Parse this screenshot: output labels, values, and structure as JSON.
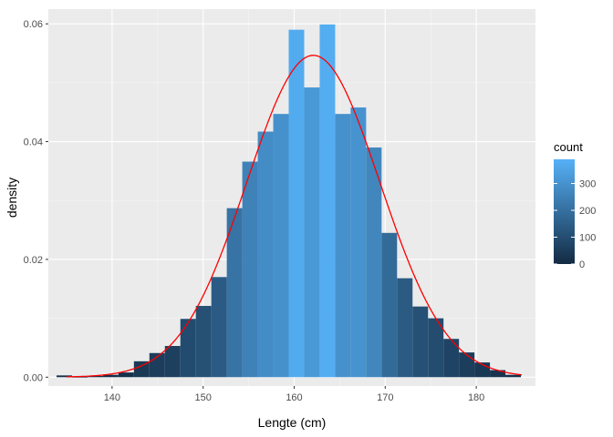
{
  "chart_data": {
    "type": "bar",
    "subtype": "histogram-with-density-curve",
    "xlabel": "Lengte (cm)",
    "ylabel": "density",
    "xlim": [
      133,
      186.5
    ],
    "ylim": [
      -0.0015,
      0.0625
    ],
    "xticks": [
      140,
      150,
      160,
      170,
      180
    ],
    "yticks": [
      0.0,
      0.02,
      0.04,
      0.06
    ],
    "ytick_labels": [
      "0.00",
      "0.02",
      "0.04",
      "0.06"
    ],
    "grid": true,
    "bin_width": 1.7,
    "bins": [
      {
        "xmin": 133.9,
        "xmax": 135.6,
        "density": 0.0003
      },
      {
        "xmin": 135.6,
        "xmax": 137.3,
        "density": 0.0001
      },
      {
        "xmin": 137.3,
        "xmax": 139.0,
        "density": 0.0002
      },
      {
        "xmin": 139.0,
        "xmax": 140.7,
        "density": 0.0004
      },
      {
        "xmin": 140.7,
        "xmax": 142.4,
        "density": 0.0008
      },
      {
        "xmin": 142.4,
        "xmax": 144.1,
        "density": 0.0027
      },
      {
        "xmin": 144.1,
        "xmax": 145.8,
        "density": 0.0041
      },
      {
        "xmin": 145.8,
        "xmax": 147.5,
        "density": 0.0053
      },
      {
        "xmin": 147.5,
        "xmax": 149.2,
        "density": 0.0099
      },
      {
        "xmin": 149.2,
        "xmax": 150.9,
        "density": 0.0121
      },
      {
        "xmin": 150.9,
        "xmax": 152.6,
        "density": 0.017
      },
      {
        "xmin": 152.6,
        "xmax": 154.3,
        "density": 0.0287
      },
      {
        "xmin": 154.3,
        "xmax": 156.0,
        "density": 0.0366
      },
      {
        "xmin": 156.0,
        "xmax": 157.7,
        "density": 0.0417
      },
      {
        "xmin": 157.7,
        "xmax": 159.4,
        "density": 0.0447
      },
      {
        "xmin": 159.4,
        "xmax": 161.1,
        "density": 0.059
      },
      {
        "xmin": 161.1,
        "xmax": 162.8,
        "density": 0.0492
      },
      {
        "xmin": 162.8,
        "xmax": 164.5,
        "density": 0.0599
      },
      {
        "xmin": 164.5,
        "xmax": 166.2,
        "density": 0.0447
      },
      {
        "xmin": 166.2,
        "xmax": 167.9,
        "density": 0.0458
      },
      {
        "xmin": 167.9,
        "xmax": 169.6,
        "density": 0.039
      },
      {
        "xmin": 169.6,
        "xmax": 171.3,
        "density": 0.0245
      },
      {
        "xmin": 171.3,
        "xmax": 173.0,
        "density": 0.0168
      },
      {
        "xmin": 173.0,
        "xmax": 174.7,
        "density": 0.012
      },
      {
        "xmin": 174.7,
        "xmax": 176.4,
        "density": 0.01
      },
      {
        "xmin": 176.4,
        "xmax": 178.1,
        "density": 0.0065
      },
      {
        "xmin": 178.1,
        "xmax": 179.8,
        "density": 0.0042
      },
      {
        "xmin": 179.8,
        "xmax": 181.5,
        "density": 0.0025
      },
      {
        "xmin": 181.5,
        "xmax": 183.2,
        "density": 0.0012
      },
      {
        "xmin": 183.2,
        "xmax": 184.9,
        "density": 0.0004
      }
    ],
    "curve": {
      "kind": "normal-density",
      "mean": 162.1,
      "sd": 7.3,
      "x_range": [
        135,
        185
      ],
      "color": "#ff0000"
    },
    "fill_mapping": {
      "variable": "count",
      "counts_per_density": 6250,
      "scale_max": 390,
      "low_color": "#132b43",
      "high_color": "#56b1f7"
    },
    "legend": {
      "title": "count",
      "position": "right",
      "breaks": [
        0,
        100,
        200,
        300
      ],
      "labels": [
        "0",
        "100",
        "200",
        "300"
      ],
      "range": [
        0,
        390
      ]
    },
    "colors": {
      "panel_background": "#ebebeb",
      "grid_major": "#ffffff",
      "tick_label": "#4d4d4d"
    }
  }
}
